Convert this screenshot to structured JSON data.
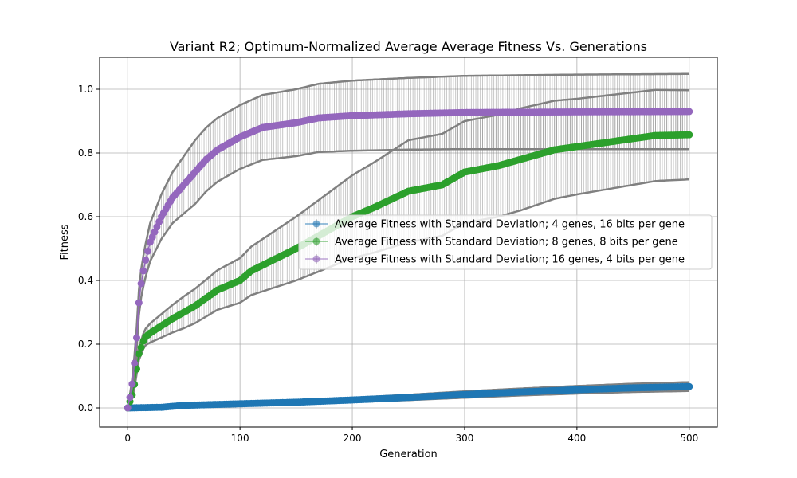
{
  "chart_data": {
    "type": "line",
    "title": "Variant R2; Optimum-Normalized Average Average Fitness Vs. Generations",
    "xlabel": "Generation",
    "ylabel": "Fitness",
    "xlim": [
      -25,
      525
    ],
    "ylim": [
      -0.06,
      1.1
    ],
    "xticks": [
      0,
      100,
      200,
      300,
      400,
      500
    ],
    "yticks": [
      0.0,
      0.2,
      0.4,
      0.6,
      0.8,
      1.0
    ],
    "xtick_labels": [
      "0",
      "100",
      "200",
      "300",
      "400",
      "500"
    ],
    "ytick_labels": [
      "0.0",
      "0.2",
      "0.4",
      "0.6",
      "0.8",
      "1.0"
    ],
    "grid": true,
    "legend_position": "center-right",
    "errorbar_color": "#808080",
    "series": [
      {
        "name": "Average Fitness with Standard Deviation; 4 genes, 16 bits per gene",
        "color": "#1f77b4",
        "points": [
          [
            0,
            0.0
          ],
          [
            30,
            0.002
          ],
          [
            50,
            0.008
          ],
          [
            100,
            0.013
          ],
          [
            150,
            0.018
          ],
          [
            200,
            0.025
          ],
          [
            250,
            0.033
          ],
          [
            300,
            0.042
          ],
          [
            350,
            0.05
          ],
          [
            400,
            0.057
          ],
          [
            450,
            0.063
          ],
          [
            500,
            0.067
          ]
        ],
        "std": [
          [
            0,
            0.0
          ],
          [
            100,
            0.004
          ],
          [
            200,
            0.007
          ],
          [
            300,
            0.01
          ],
          [
            400,
            0.012
          ],
          [
            500,
            0.014
          ]
        ]
      },
      {
        "name": "Average Fitness with Standard Deviation; 8 genes, 8 bits per gene",
        "color": "#2ca02c",
        "points": [
          [
            0,
            0.0
          ],
          [
            5,
            0.05
          ],
          [
            10,
            0.17
          ],
          [
            15,
            0.22
          ],
          [
            20,
            0.235
          ],
          [
            40,
            0.28
          ],
          [
            60,
            0.32
          ],
          [
            80,
            0.37
          ],
          [
            100,
            0.4
          ],
          [
            110,
            0.43
          ],
          [
            150,
            0.5
          ],
          [
            180,
            0.56
          ],
          [
            200,
            0.6
          ],
          [
            220,
            0.63
          ],
          [
            250,
            0.68
          ],
          [
            280,
            0.7
          ],
          [
            300,
            0.74
          ],
          [
            330,
            0.76
          ],
          [
            350,
            0.78
          ],
          [
            380,
            0.81
          ],
          [
            400,
            0.82
          ],
          [
            430,
            0.835
          ],
          [
            450,
            0.845
          ],
          [
            470,
            0.855
          ],
          [
            500,
            0.857
          ]
        ],
        "std": [
          [
            0,
            0.0
          ],
          [
            10,
            0.02
          ],
          [
            20,
            0.03
          ],
          [
            50,
            0.05
          ],
          [
            100,
            0.07
          ],
          [
            150,
            0.1
          ],
          [
            200,
            0.13
          ],
          [
            250,
            0.16
          ],
          [
            300,
            0.16
          ],
          [
            350,
            0.16
          ],
          [
            400,
            0.15
          ],
          [
            450,
            0.145
          ],
          [
            500,
            0.14
          ]
        ]
      },
      {
        "name": "Average Fitness with Standard Deviation; 16 genes, 4 bits per gene",
        "color": "#9467bd",
        "points": [
          [
            0,
            0.0
          ],
          [
            3,
            0.05
          ],
          [
            5,
            0.1
          ],
          [
            8,
            0.22
          ],
          [
            10,
            0.33
          ],
          [
            12,
            0.39
          ],
          [
            15,
            0.45
          ],
          [
            20,
            0.52
          ],
          [
            30,
            0.6
          ],
          [
            40,
            0.66
          ],
          [
            50,
            0.7
          ],
          [
            60,
            0.74
          ],
          [
            70,
            0.78
          ],
          [
            80,
            0.81
          ],
          [
            90,
            0.83
          ],
          [
            100,
            0.85
          ],
          [
            120,
            0.88
          ],
          [
            150,
            0.895
          ],
          [
            170,
            0.91
          ],
          [
            200,
            0.917
          ],
          [
            250,
            0.923
          ],
          [
            300,
            0.927
          ],
          [
            400,
            0.929
          ],
          [
            500,
            0.93
          ]
        ],
        "std": [
          [
            0,
            0.0
          ],
          [
            5,
            0.02
          ],
          [
            10,
            0.04
          ],
          [
            20,
            0.06
          ],
          [
            40,
            0.08
          ],
          [
            60,
            0.1
          ],
          [
            80,
            0.1
          ],
          [
            100,
            0.1
          ],
          [
            150,
            0.105
          ],
          [
            200,
            0.11
          ],
          [
            300,
            0.115
          ],
          [
            400,
            0.117
          ],
          [
            500,
            0.118
          ]
        ]
      }
    ]
  }
}
